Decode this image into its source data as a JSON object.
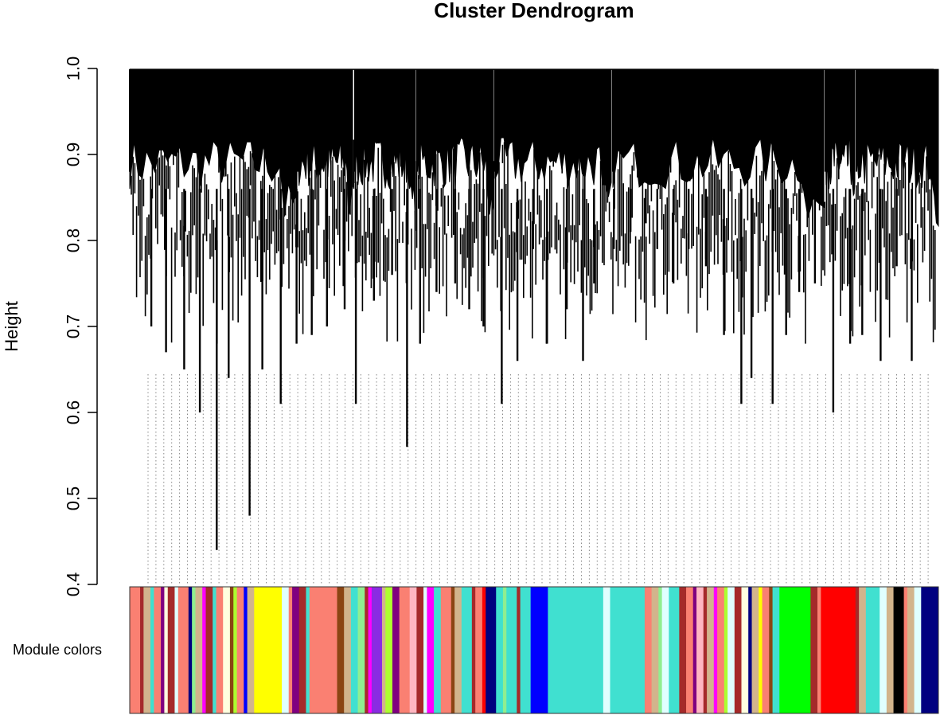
{
  "chart_data": {
    "type": "dendrogram",
    "title": "Cluster Dendrogram",
    "xlabel": "",
    "ylabel": "Height",
    "ylim": [
      0.4,
      1.0
    ],
    "yticks": [
      "0.4",
      "0.5",
      "0.6",
      "0.7",
      "0.8",
      "0.9",
      "1.0"
    ],
    "ytick_values": [
      0.4,
      0.5,
      0.6,
      0.7,
      0.8,
      0.9,
      1.0
    ],
    "colorbar_label": "Module colors",
    "module_blocks": [
      {
        "color": "#fa8072",
        "weight": 3
      },
      {
        "color": "#a52a2a",
        "weight": 1
      },
      {
        "color": "#d2b48c",
        "weight": 2
      },
      {
        "color": "#40e0d0",
        "weight": 1
      },
      {
        "color": "#fa8072",
        "weight": 2
      },
      {
        "color": "#800080",
        "weight": 1
      },
      {
        "color": "#ffffe0",
        "weight": 1
      },
      {
        "color": "#a52a2a",
        "weight": 2
      },
      {
        "color": "#e0ffff",
        "weight": 1
      },
      {
        "color": "#fa8072",
        "weight": 3
      },
      {
        "color": "#000080",
        "weight": 1
      },
      {
        "color": "#90ee90",
        "weight": 1
      },
      {
        "color": "#d2b48c",
        "weight": 2
      },
      {
        "color": "#ff00ff",
        "weight": 1
      },
      {
        "color": "#a52a2a",
        "weight": 2
      },
      {
        "color": "#40e0d0",
        "weight": 1
      },
      {
        "color": "#fa8072",
        "weight": 2
      },
      {
        "color": "#ffffe0",
        "weight": 2
      },
      {
        "color": "#8b4513",
        "weight": 1
      },
      {
        "color": "#adff2f",
        "weight": 1
      },
      {
        "color": "#fa8072",
        "weight": 2
      },
      {
        "color": "#0000ff",
        "weight": 1
      },
      {
        "color": "#d2b48c",
        "weight": 2
      },
      {
        "color": "#ffff00",
        "weight": 8
      },
      {
        "color": "#e0ffff",
        "weight": 2
      },
      {
        "color": "#fa8072",
        "weight": 1
      },
      {
        "color": "#800080",
        "weight": 2
      },
      {
        "color": "#a52a2a",
        "weight": 2
      },
      {
        "color": "#40e0d0",
        "weight": 1
      },
      {
        "color": "#fa8072",
        "weight": 8
      },
      {
        "color": "#8b4513",
        "weight": 2
      },
      {
        "color": "#d2b48c",
        "weight": 2
      },
      {
        "color": "#40e0d0",
        "weight": 2
      },
      {
        "color": "#90ee90",
        "weight": 2
      },
      {
        "color": "#a52a2a",
        "weight": 1
      },
      {
        "color": "#ff00ff",
        "weight": 1
      },
      {
        "color": "#8a2be2",
        "weight": 3
      },
      {
        "color": "#d2b48c",
        "weight": 1
      },
      {
        "color": "#adff2f",
        "weight": 2
      },
      {
        "color": "#800080",
        "weight": 2
      },
      {
        "color": "#fa8072",
        "weight": 3
      },
      {
        "color": "#ffb6c1",
        "weight": 2
      },
      {
        "color": "#a52a2a",
        "weight": 2
      },
      {
        "color": "#e0ffff",
        "weight": 1
      },
      {
        "color": "#ff00ff",
        "weight": 2
      },
      {
        "color": "#40e0d0",
        "weight": 2
      },
      {
        "color": "#fa8072",
        "weight": 3
      },
      {
        "color": "#8b4513",
        "weight": 1
      },
      {
        "color": "#d2b48c",
        "weight": 2
      },
      {
        "color": "#40e0d0",
        "weight": 3
      },
      {
        "color": "#a52a2a",
        "weight": 1
      },
      {
        "color": "#fa8072",
        "weight": 2
      },
      {
        "color": "#ff0000",
        "weight": 1
      },
      {
        "color": "#000080",
        "weight": 3
      },
      {
        "color": "#40e0d0",
        "weight": 2
      },
      {
        "color": "#90ee90",
        "weight": 1
      },
      {
        "color": "#40e0d0",
        "weight": 3
      },
      {
        "color": "#a52a2a",
        "weight": 1
      },
      {
        "color": "#40e0d0",
        "weight": 3
      },
      {
        "color": "#0000ff",
        "weight": 5
      },
      {
        "color": "#40e0d0",
        "weight": 16
      },
      {
        "color": "#e0ffff",
        "weight": 2
      },
      {
        "color": "#40e0d0",
        "weight": 10
      },
      {
        "color": "#fa8072",
        "weight": 2
      },
      {
        "color": "#d2b48c",
        "weight": 2
      },
      {
        "color": "#90ee90",
        "weight": 1
      },
      {
        "color": "#e0ffff",
        "weight": 2
      },
      {
        "color": "#40e0d0",
        "weight": 3
      },
      {
        "color": "#a52a2a",
        "weight": 2
      },
      {
        "color": "#fa8072",
        "weight": 2
      },
      {
        "color": "#800080",
        "weight": 1
      },
      {
        "color": "#ffb6c1",
        "weight": 2
      },
      {
        "color": "#a52a2a",
        "weight": 1
      },
      {
        "color": "#d2b48c",
        "weight": 2
      },
      {
        "color": "#ff00ff",
        "weight": 1
      },
      {
        "color": "#fa8072",
        "weight": 2
      },
      {
        "color": "#adff2f",
        "weight": 1
      },
      {
        "color": "#e0ffff",
        "weight": 2
      },
      {
        "color": "#a52a2a",
        "weight": 2
      },
      {
        "color": "#ffffe0",
        "weight": 2
      },
      {
        "color": "#000080",
        "weight": 1
      },
      {
        "color": "#d2b48c",
        "weight": 2
      },
      {
        "color": "#ffff00",
        "weight": 1
      },
      {
        "color": "#fa8072",
        "weight": 2
      },
      {
        "color": "#8b4513",
        "weight": 1
      },
      {
        "color": "#40e0d0",
        "weight": 2
      },
      {
        "color": "#00ff00",
        "weight": 9
      },
      {
        "color": "#a52a2a",
        "weight": 2
      },
      {
        "color": "#fa8072",
        "weight": 1
      },
      {
        "color": "#ff0000",
        "weight": 10
      },
      {
        "color": "#a52a2a",
        "weight": 1
      },
      {
        "color": "#d2b48c",
        "weight": 2
      },
      {
        "color": "#40e0d0",
        "weight": 4
      },
      {
        "color": "#e0ffff",
        "weight": 2
      },
      {
        "color": "#d2b48c",
        "weight": 2
      },
      {
        "color": "#000000",
        "weight": 3
      },
      {
        "color": "#fa8072",
        "weight": 1
      },
      {
        "color": "#d2b48c",
        "weight": 2
      },
      {
        "color": "#e0ffff",
        "weight": 2
      },
      {
        "color": "#000080",
        "weight": 5
      }
    ],
    "cluster_minima": [
      0.7,
      0.67,
      0.65,
      0.6,
      0.44,
      0.64,
      0.48,
      0.65,
      0.61,
      0.68,
      0.69,
      0.7,
      0.72,
      0.61,
      0.73,
      0.76,
      0.56,
      0.68,
      0.74,
      0.75,
      0.72,
      0.7,
      0.61,
      0.66,
      0.79,
      0.68,
      0.72,
      0.66,
      0.75,
      0.79,
      0.81,
      0.82,
      0.79,
      0.75,
      0.79,
      0.77,
      0.69,
      0.61,
      0.64,
      0.61,
      0.69,
      0.74,
      0.75,
      0.6,
      0.68,
      0.69,
      0.66,
      0.77,
      0.66
    ]
  }
}
